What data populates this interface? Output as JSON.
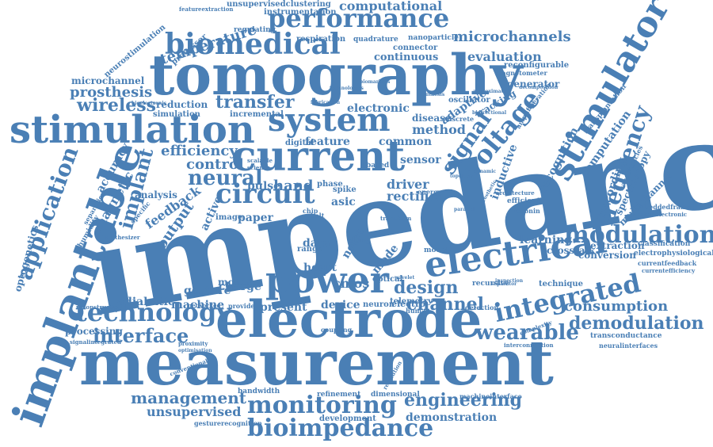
{
  "color": "#4a7fb5",
  "words": {
    "impedance": "impedance",
    "measurement": "measurement",
    "tomography": "tomography",
    "electrode": "electrode",
    "stimulation": "stimulation",
    "implantable": "implantable",
    "stimulator": "stimulator",
    "current": "current",
    "electrical": "electrical",
    "power": "power",
    "system": "system",
    "biomedical": "biomedical",
    "performance": "performance",
    "integrated": "integrated",
    "modulation": "modulation",
    "technology": "technology",
    "bioimpedance": "bioimpedance",
    "monitoring": "monitoring",
    "voltage": "voltage",
    "application": "application",
    "circuit": "circuit",
    "neural": "neural",
    "frequency": "frequency",
    "wearable": "wearable",
    "interface": "interface",
    "design": "design",
    "channel": "channel",
    "signal": "signal",
    "demodulation": "demodulation",
    "engineering": "engineering",
    "management": "management",
    "transfer": "transfer",
    "wireless": "wireless",
    "prosthesis": "prosthesis",
    "microchannels": "microchannels",
    "computational": "computational",
    "temperature": "temperature",
    "evaluation": "evaluation",
    "continuous": "continuous",
    "method": "method",
    "implant": "implant",
    "control": "control",
    "efficiency": "efficiency",
    "feedback": "feedback",
    "output": "output",
    "magnetic": "magnetic",
    "accuracy": "accuracy",
    "optogenetics": "optogenetics",
    "unsupervised": "unsupervised",
    "consumption": "consumption",
    "recording": "recording",
    "spectroscopy": "spectroscopy",
    "computation": "computation",
    "recognition": "recognition",
    "multichannel": "multichannel",
    "electronic": "electronic",
    "disease": "disease",
    "feature": "feature",
    "common": "common",
    "sensor": "sensor",
    "rectifier": "rectifier",
    "driver": "driver",
    "hand": "hand",
    "cmos": "cmos",
    "mode": "mode",
    "heart": "heart",
    "device": "device",
    "present": "present",
    "charge": "charge",
    "motor": "motor",
    "machine": "machine",
    "gesture": "gesture",
    "adiabatic": "adiabatic",
    "processing": "processing",
    "analysis": "analysis",
    "paper": "paper",
    "pulse": "pulse",
    "asic": "asic",
    "noise": "noise",
    "data": "data",
    "learning": "learning",
    "crosstalk": "crosstalk",
    "extraction": "extraction",
    "conversion": "conversion",
    "inductive": "inductive",
    "adaptive": "adaptive",
    "tracking": "tracking",
    "reduction": "reduction",
    "microchannel": "microchannel",
    "generator": "generator",
    "reconfigurable": "reconfigurable",
    "oscillator": "oscillator",
    "respiration": "respiration",
    "connector": "connector",
    "nanoparticle": "nanoparticle",
    "quadrature": "quadrature",
    "regulating": "regulating",
    "processor": "processor",
    "instrumentation": "instrumentation",
    "unsupervisedclustering": "unsupervisedclustering",
    "featureextraction": "featureextraction",
    "neurostimulation": "neurostimulation",
    "magnetometer": "magnetometer",
    "technique": "technique",
    "neuron": "neuron",
    "telemetry": "telemetry",
    "electro": "electro",
    "bandwidth": "bandwidth",
    "refinement": "refinement",
    "dimensional": "dimensional",
    "demonstration": "demonstration",
    "development": "development",
    "gesturerecognition": "gesturerecognition",
    "machineinterface": "machineinterface",
    "transconductance": "transconductance",
    "neuralinterfaces": "neuralinterfaces",
    "classification": "classification",
    "electrophysiological": "electrophysiological",
    "currentfeedback": "currentfeedback",
    "currentefficiency": "currentefficiency",
    "embeddedframes": "embeddedframes",
    "microelectronic": "microelectronic",
    "nanoparticles": "nanoparticles",
    "transplantation": "transplantation",
    "efficient": "efficient",
    "troponin": "troponin",
    "architecture": "architecture",
    "separation": "separation",
    "humidity": "humidity",
    "synthesizer": "synthesizer",
    "signalintegrated": "signalintegrated",
    "reconstruction": "reconstruction",
    "networked": "networked",
    "provide": "provide",
    "image": "image",
    "active": "active",
    "specific": "specific",
    "scalable": "scalable",
    "science": "science",
    "phase": "phase",
    "spike": "spike",
    "optical": "optical",
    "model": "model",
    "recursive": "recursive",
    "human": "human",
    "detection": "detection",
    "coupling": "coupling",
    "inspection": "inspection",
    "separator": "separator",
    "interconnection": "interconnection",
    "complexity": "complexity",
    "resolution": "resolution",
    "conventional": "conventional",
    "proximity": "proximity",
    "optimisation": "optimisation",
    "simulation": "simulation",
    "incremental": "incremental",
    "bioelectronic": "bioelectronic",
    "technologies": "technologies",
    "biomarkers": "biomarkers",
    "fabrication": "fabrication",
    "synthesis": "synthesis",
    "approximate": "approximate",
    "bidirectional": "bidirectional",
    "operation": "operation",
    "amplifier": "amplifier",
    "decomposition": "decomposition",
    "discrete": "discrete",
    "prosthetic": "prosthetic",
    "topology": "topology",
    "dynamic": "dynamic",
    "parallel": "parallel",
    "range": "range",
    "lung": "lung",
    "chip": "chip",
    "belt": "belt",
    "transform": "transform",
    "energy": "energy",
    "wavelet": "wavelet",
    "digital": "digital",
    "based": "based"
  }
}
